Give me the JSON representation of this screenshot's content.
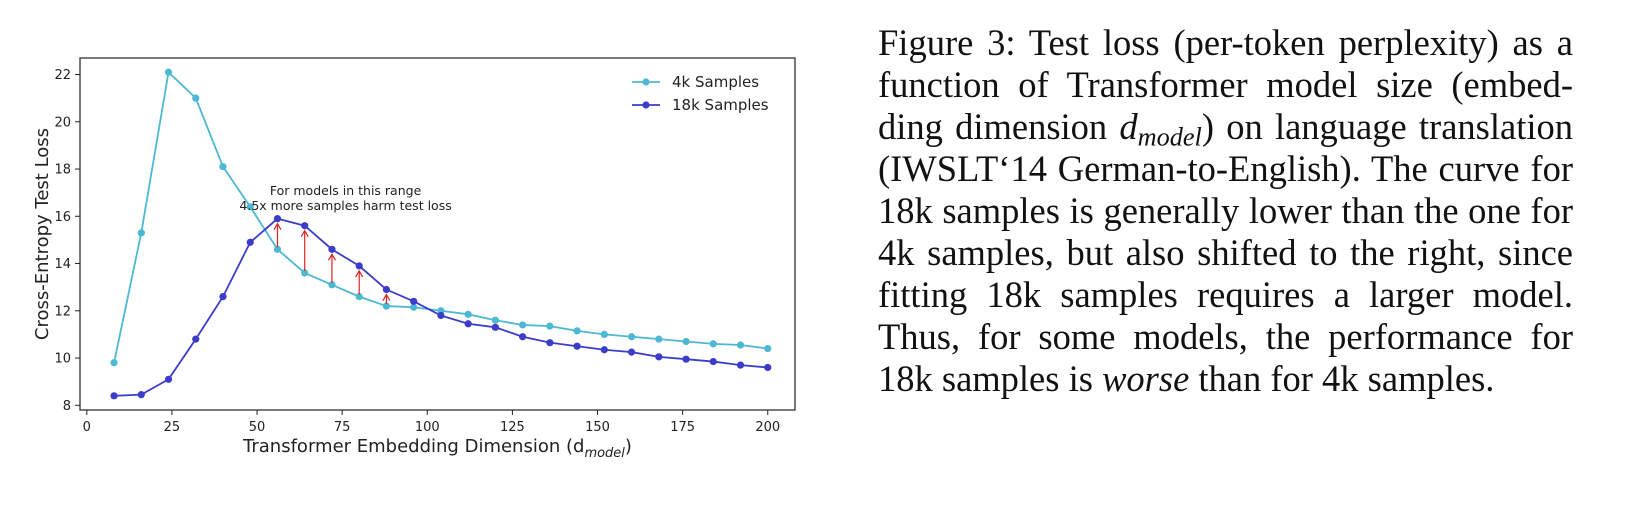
{
  "chart_data": {
    "type": "line",
    "xlabel": "Transformer Embedding Dimension (d",
    "xlabel_sub": "model",
    "xlabel_close": ")",
    "ylabel": "Cross-Entropy Test Loss",
    "xlim": [
      -2,
      208
    ],
    "ylim": [
      7.8,
      22.7
    ],
    "xticks": [
      0,
      25,
      50,
      75,
      100,
      125,
      150,
      175,
      200
    ],
    "yticks": [
      8,
      10,
      12,
      14,
      16,
      18,
      20,
      22
    ],
    "grid": false,
    "legend_position": "top-right",
    "x": [
      8,
      16,
      24,
      32,
      40,
      48,
      56,
      64,
      72,
      80,
      88,
      96,
      104,
      112,
      120,
      128,
      136,
      144,
      152,
      160,
      168,
      176,
      184,
      192,
      200
    ],
    "series": [
      {
        "name": "4k Samples",
        "color": "#4db8d2",
        "values": [
          9.8,
          15.3,
          22.1,
          21.0,
          18.1,
          16.4,
          14.6,
          13.6,
          13.1,
          12.6,
          12.2,
          12.15,
          12.0,
          11.85,
          11.6,
          11.4,
          11.35,
          11.15,
          11.0,
          10.9,
          10.8,
          10.7,
          10.6,
          10.55,
          10.4
        ]
      },
      {
        "name": "18k Samples",
        "color": "#3c3ccb",
        "values": [
          8.4,
          8.45,
          9.1,
          10.8,
          12.6,
          14.9,
          15.9,
          15.6,
          14.6,
          13.9,
          12.9,
          12.4,
          11.8,
          11.45,
          11.3,
          10.9,
          10.65,
          10.5,
          10.35,
          10.25,
          10.05,
          9.95,
          9.85,
          9.7,
          9.6
        ]
      }
    ],
    "annotation": {
      "lines": [
        "For models in this range",
        "4.5x more samples harm test loss"
      ],
      "x": 76,
      "y": 16.9,
      "arrow_color": "#e02020",
      "arrows": [
        {
          "x": 56,
          "from": 14.6,
          "to": 15.9
        },
        {
          "x": 64,
          "from": 13.6,
          "to": 15.6
        },
        {
          "x": 72,
          "from": 13.1,
          "to": 14.6
        },
        {
          "x": 80,
          "from": 12.6,
          "to": 13.9
        },
        {
          "x": 88,
          "from": 12.2,
          "to": 12.9
        }
      ]
    }
  },
  "caption": {
    "figure_label": "Figure 3:",
    "part1": " Test loss (per-token perplexity) as a function of Transformer model size (embed­ding dimension ",
    "math_var": "d",
    "math_sub": "model",
    "part2": ") on language trans­lation (IWSLT‘14 German-to-English). The curve for 18k samples is generally lower than the one for 4k samples, but also shifted to the right, since fitting 18k samples requires a larger model. Thus, for some models, the performance for 18k samples is ",
    "emphasis": "worse",
    "part3": " than for 4k samples."
  }
}
